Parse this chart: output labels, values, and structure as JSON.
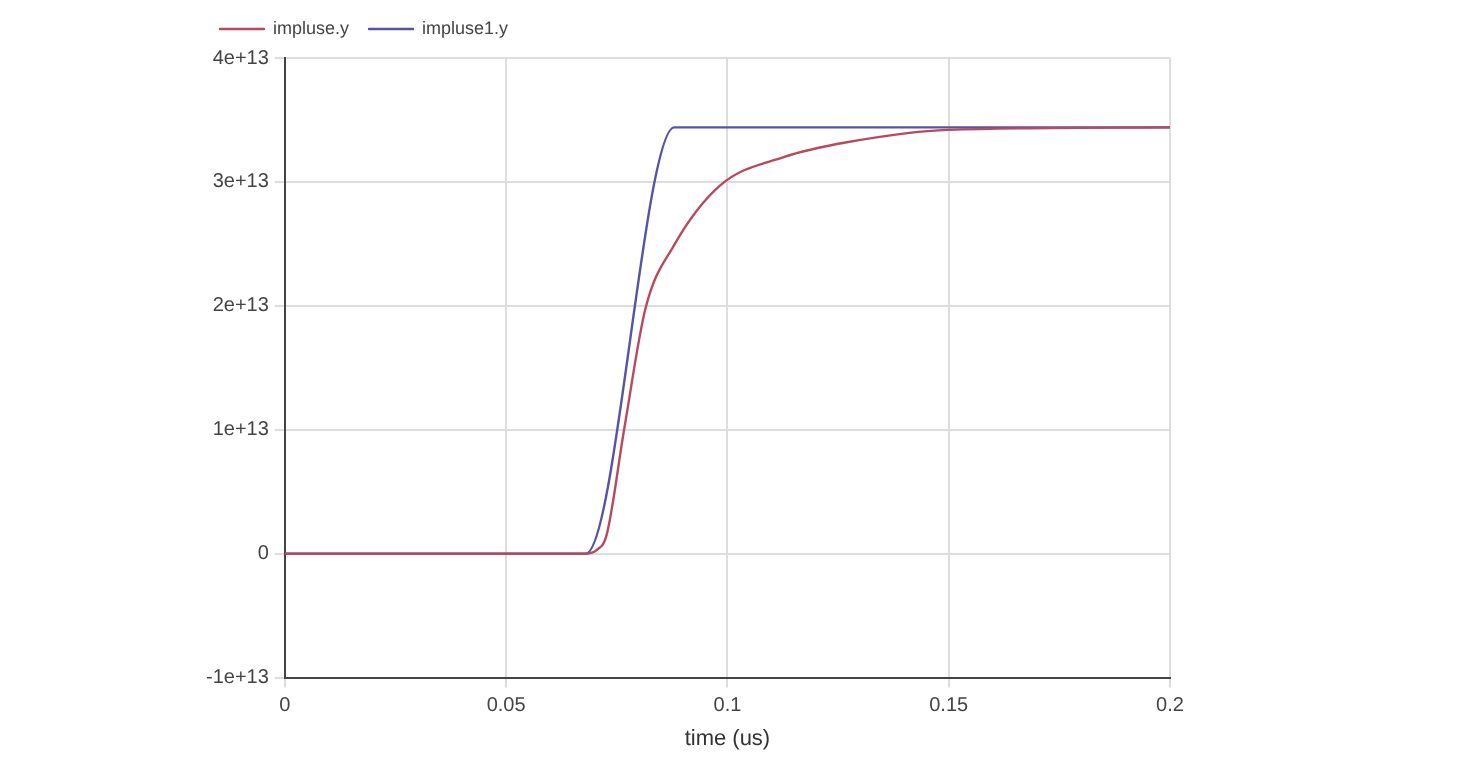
{
  "chart_data": {
    "type": "line",
    "xlabel": "time (us)",
    "series": [
      {
        "name": "impluse.y",
        "color": "#b84a5e",
        "x": [
          0,
          0.068,
          0.0705,
          0.0727,
          0.0767,
          0.0815,
          0.0878,
          0.0983,
          0.1127,
          0.127,
          0.15,
          0.2
        ],
        "values": [
          0,
          0,
          300000000000.0,
          1500000000000.0,
          10100000000000.0,
          19800000000000.0,
          24800000000000.0,
          29700000000000.0,
          32000000000000.0,
          33200000000000.0,
          34200000000000.0,
          34400000000000.0
        ]
      },
      {
        "name": "impluse1.y",
        "color": "#5555a5",
        "x": [
          0,
          0.068,
          0.088,
          0.2
        ],
        "values": [
          0,
          0,
          34400000000000.0,
          34400000000000.0
        ]
      }
    ],
    "xlim": [
      0,
      0.2
    ],
    "xticks": [
      0,
      0.05,
      0.1,
      0.15,
      0.2
    ],
    "ylim": [
      -10000000000000.0,
      40000000000000.0
    ],
    "yticks": [
      {
        "value": -10000000000000.0,
        "label": "-1e+13"
      },
      0,
      {
        "value": 10000000000000.0,
        "label": "1e+13"
      },
      {
        "value": 20000000000000.0,
        "label": "2e+13"
      },
      {
        "value": 30000000000000.0,
        "label": "3e+13"
      },
      {
        "value": 40000000000000.0,
        "label": "4e+13"
      }
    ],
    "grid": true,
    "legend": "top left",
    "marker": "none",
    "line_style": "solid"
  }
}
